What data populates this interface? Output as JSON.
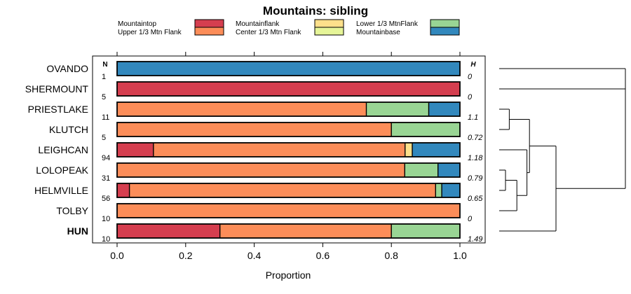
{
  "chart_data": {
    "type": "bar",
    "orientation": "horizontal",
    "stacked": true,
    "title": "Mountains: sibling",
    "xlabel": "Proportion",
    "ylabel": "",
    "xlim": [
      0,
      1
    ],
    "x_ticks": [
      "0.0",
      "0.2",
      "0.4",
      "0.6",
      "0.8",
      "1.0"
    ],
    "x_tick_values": [
      0,
      0.2,
      0.4,
      0.6,
      0.8,
      1.0
    ],
    "n_header": "N",
    "h_header": "H",
    "legend": [
      {
        "name": "Mountaintop",
        "color": "#d53e4f"
      },
      {
        "name": "Upper 1/3 Mtn Flank",
        "color": "#fc8d59"
      },
      {
        "name": "Mountainflank",
        "color": "#fee08b"
      },
      {
        "name": "Center 1/3 Mtn Flank",
        "color": "#e6f598"
      },
      {
        "name": "Lower 1/3 MtnFlank",
        "color": "#99d594"
      },
      {
        "name": "Mountainbase",
        "color": "#3288bd"
      }
    ],
    "categories": [
      "OVANDO",
      "SHERMOUNT",
      "PRIESTLAKE",
      "KLUTCH",
      "LEIGHCAN",
      "LOLOPEAK",
      "HELMVILLE",
      "TOLBY",
      "HUN"
    ],
    "bold_categories": [
      "HUN"
    ],
    "n": [
      "1",
      "5",
      "11",
      "5",
      "94",
      "31",
      "56",
      "10",
      "10"
    ],
    "h": [
      "0",
      "0",
      "1.1",
      "0.72",
      "1.18",
      "0.79",
      "0.65",
      "0",
      "1.49"
    ],
    "series": [
      {
        "name": "Mountaintop",
        "values": [
          0,
          1.0,
          0,
          0,
          0.106,
          0,
          0.036,
          0,
          0.3
        ]
      },
      {
        "name": "Upper 1/3 Mtn Flank",
        "values": [
          0,
          0,
          0.727,
          0.8,
          0.734,
          0.839,
          0.893,
          1.0,
          0.5
        ]
      },
      {
        "name": "Mountainflank",
        "values": [
          0,
          0,
          0,
          0,
          0.021,
          0,
          0,
          0,
          0
        ]
      },
      {
        "name": "Center 1/3 Mtn Flank",
        "values": [
          0,
          0,
          0,
          0,
          0,
          0,
          0,
          0,
          0
        ]
      },
      {
        "name": "Lower 1/3 MtnFlank",
        "values": [
          0,
          0,
          0.182,
          0.2,
          0,
          0.097,
          0.018,
          0,
          0.2
        ]
      },
      {
        "name": "Mountainbase",
        "values": [
          1.0,
          0,
          0.091,
          0,
          0.139,
          0.064,
          0.053,
          0,
          0
        ]
      }
    ],
    "dendrogram": {
      "leaves": [
        "OVANDO",
        "SHERMOUNT",
        "PRIESTLAKE",
        "KLUTCH",
        "LEIGHCAN",
        "LOLOPEAK",
        "HELMVILLE",
        "TOLBY",
        "HUN"
      ],
      "merges": [
        {
          "a": "LOLOPEAK",
          "b": "HELMVILLE",
          "height": 0.05
        },
        {
          "a": "PRIESTLAKE",
          "b": "KLUTCH",
          "height": 0.08
        },
        {
          "a": "LOLOPEAK+HELMVILLE",
          "b": "TOLBY",
          "height": 0.14
        },
        {
          "a": "LOLOPEAK+HELMVILLE+TOLBY",
          "b": "LEIGHCAN",
          "height": 0.22
        },
        {
          "a": "PRIESTLAKE+KLUTCH",
          "b": "LOLOPEAK+HELMVILLE+TOLBY+LEIGHCAN",
          "height": 0.24
        },
        {
          "a": "PRIESTLAKE..TOLBY",
          "b": "HUN",
          "height": 0.45
        },
        {
          "a": "PRIESTLAKE..HUN",
          "b": "SHERMOUNT",
          "height": 1.0
        },
        {
          "a": "PRIESTLAKE..SHERMOUNT",
          "b": "OVANDO",
          "height": 1.0
        }
      ]
    }
  }
}
